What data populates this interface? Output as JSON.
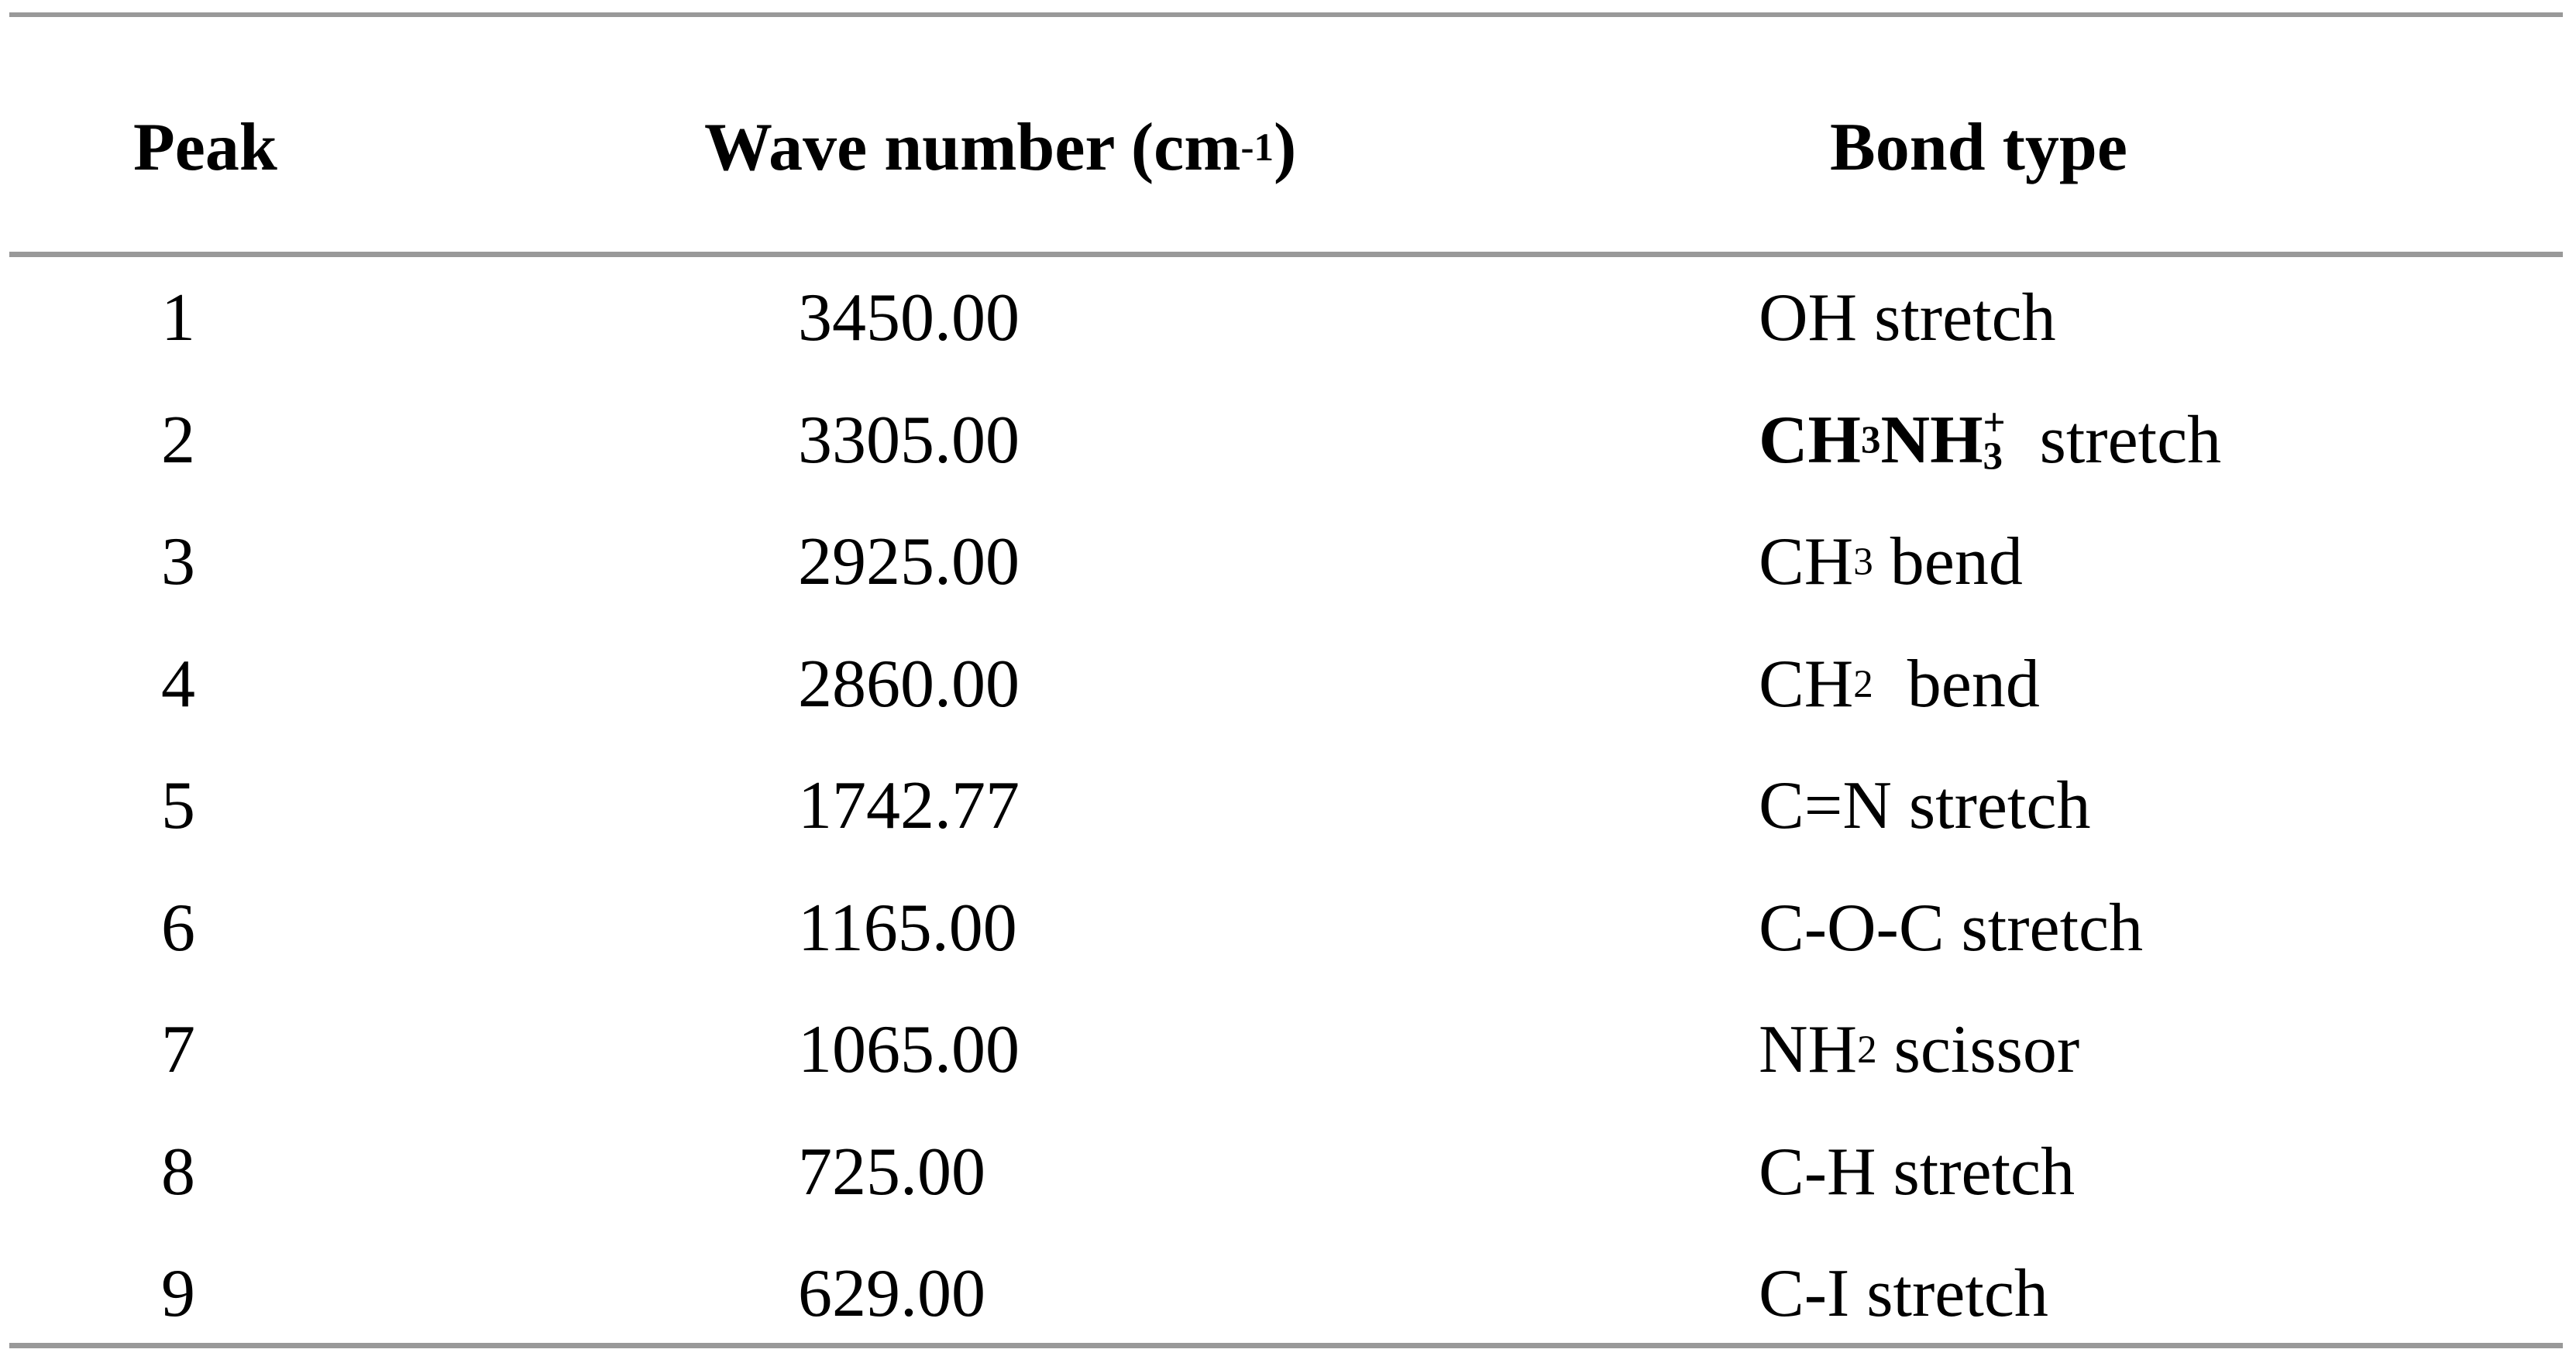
{
  "table": {
    "rule_color": "#999999",
    "headers": {
      "peak": "Peak",
      "wave_pre": "Wave number (cm",
      "wave_sup": "-1",
      "wave_post": ")",
      "bond": "Bond type"
    },
    "rows": [
      {
        "peak": "1",
        "wave": "3450.00",
        "bond": [
          {
            "t": "text",
            "v": "OH stretch"
          }
        ]
      },
      {
        "peak": "2",
        "wave": "3305.00",
        "bond": [
          {
            "t": "text",
            "v": "CH",
            "bold": true
          },
          {
            "t": "sub",
            "v": "3",
            "bold": true
          },
          {
            "t": "text",
            "v": "NH",
            "bold": true
          },
          {
            "t": "supsub",
            "sup": "+",
            "sub": "3",
            "bold": true
          },
          {
            "t": "text",
            "v": "  stretch"
          }
        ]
      },
      {
        "peak": "3",
        "wave": "2925.00",
        "bond": [
          {
            "t": "text",
            "v": "CH"
          },
          {
            "t": "sub",
            "v": "3"
          },
          {
            "t": "text",
            "v": " bend"
          }
        ]
      },
      {
        "peak": "4",
        "wave": "2860.00",
        "bond": [
          {
            "t": "text",
            "v": "CH"
          },
          {
            "t": "sub",
            "v": "2"
          },
          {
            "t": "text",
            "v": "  bend"
          }
        ]
      },
      {
        "peak": "5",
        "wave": "1742.77",
        "bond": [
          {
            "t": "text",
            "v": "C=N stretch"
          }
        ]
      },
      {
        "peak": "6",
        "wave": "1165.00",
        "bond": [
          {
            "t": "text",
            "v": "C-O-C stretch"
          }
        ]
      },
      {
        "peak": "7",
        "wave": "1065.00",
        "bond": [
          {
            "t": "text",
            "v": "NH"
          },
          {
            "t": "sub",
            "v": "2"
          },
          {
            "t": "text",
            "v": " scissor"
          }
        ]
      },
      {
        "peak": "8",
        "wave": "725.00",
        "bond": [
          {
            "t": "text",
            "v": "C-H stretch"
          }
        ]
      },
      {
        "peak": "9",
        "wave": "629.00",
        "bond": [
          {
            "t": "text",
            "v": "C-I stretch"
          }
        ]
      }
    ]
  },
  "chart_data": {
    "type": "table",
    "title": "",
    "columns": [
      "Peak",
      "Wave number (cm-1)",
      "Bond type"
    ],
    "rows": [
      [
        "1",
        "3450.00",
        "OH stretch"
      ],
      [
        "2",
        "3305.00",
        "CH3NH3+ stretch"
      ],
      [
        "3",
        "2925.00",
        "CH3 bend"
      ],
      [
        "4",
        "2860.00",
        "CH2 bend"
      ],
      [
        "5",
        "1742.77",
        "C=N stretch"
      ],
      [
        "6",
        "1165.00",
        "C-O-C stretch"
      ],
      [
        "7",
        "1065.00",
        "NH2 scissor"
      ],
      [
        "8",
        "725.00",
        "C-H stretch"
      ],
      [
        "9",
        "629.00",
        "C-I stretch"
      ]
    ]
  }
}
